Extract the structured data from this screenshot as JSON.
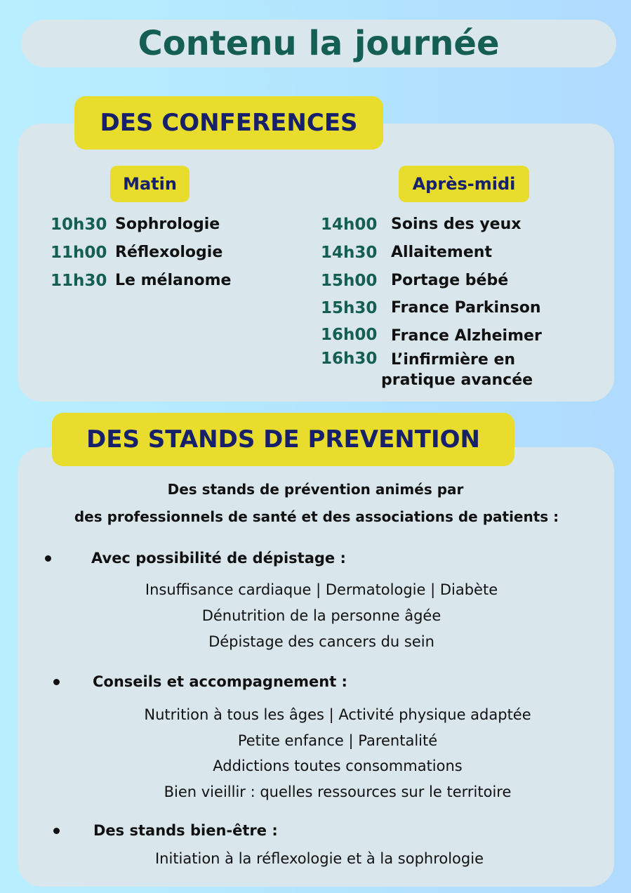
{
  "title": "Contenu la journée",
  "conferences": {
    "heading": "DES CONFERENCES",
    "morning": {
      "label": "Matin",
      "items": [
        {
          "time": "10h30",
          "topic": "Sophrologie"
        },
        {
          "time": "11h00",
          "topic": "Réflexologie"
        },
        {
          "time": "11h30",
          "topic": "Le mélanome"
        }
      ]
    },
    "afternoon": {
      "label": "Après-midi",
      "items": [
        {
          "time": "14h00",
          "topic": "Soins des yeux"
        },
        {
          "time": "14h30",
          "topic": "Allaitement"
        },
        {
          "time": "15h00",
          "topic": "Portage bébé"
        },
        {
          "time": "15h30",
          "topic": "France Parkinson"
        },
        {
          "time": "16h00",
          "topic": "France Alzheimer"
        },
        {
          "time": "16h30",
          "topic": "L’infirmière en",
          "topic_line2": "pratique avancée"
        }
      ]
    }
  },
  "stands": {
    "heading": "DES STANDS DE PREVENTION",
    "intro": [
      "Des stands de prévention animés par",
      "des professionnels de santé et des associations de patients :"
    ],
    "sections": [
      {
        "label": "Avec possibilité de dépistage :",
        "lines": [
          "Insuffisance cardiaque | Dermatologie | Diabète",
          "Dénutrition de la personne âgée",
          "Dépistage des cancers du sein"
        ]
      },
      {
        "label": "Conseils et accompagnement :",
        "lines": [
          "Nutrition à tous les âges | Activité physique adaptée",
          "Petite enfance | Parentalité",
          "Addictions toutes consommations",
          "Bien vieillir : quelles ressources sur le territoire"
        ]
      },
      {
        "label": "Des stands bien-être :",
        "lines": [
          "Initiation à la réflexologie et à la sophrologie"
        ]
      }
    ]
  },
  "colors": {
    "title": "#155e54",
    "tag": "#e8dc2c",
    "tag_text": "#17206a",
    "panel": "#d9e6ec"
  }
}
